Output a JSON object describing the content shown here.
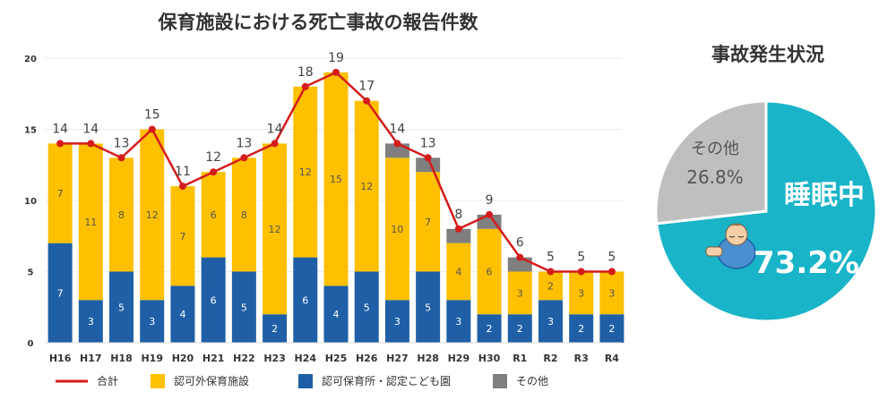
{
  "chart_data": [
    {
      "type": "bar",
      "stacked": true,
      "title": "保育施設における死亡事故の報告件数",
      "categories": [
        "H16",
        "H17",
        "H18",
        "H19",
        "H20",
        "H21",
        "H22",
        "H23",
        "H24",
        "H25",
        "H26",
        "H27",
        "H28",
        "H29",
        "H30",
        "R1",
        "R2",
        "R3",
        "R4"
      ],
      "ylim": [
        0,
        20
      ],
      "yticks": [
        0,
        5,
        10,
        15,
        20
      ],
      "series": [
        {
          "name": "認可保育所・認定こども園",
          "color": "#1f5fa6",
          "values": [
            7,
            3,
            5,
            3,
            4,
            6,
            5,
            2,
            6,
            4,
            5,
            3,
            5,
            3,
            2,
            2,
            3,
            2,
            2
          ]
        },
        {
          "name": "認可外保育施設",
          "color": "#ffc000",
          "values": [
            7,
            11,
            8,
            12,
            7,
            6,
            8,
            12,
            12,
            15,
            12,
            10,
            7,
            4,
            6,
            3,
            2,
            3,
            3
          ]
        },
        {
          "name": "その他",
          "color": "#7f7f7f",
          "values": [
            0,
            0,
            0,
            0,
            0,
            0,
            0,
            0,
            0,
            0,
            0,
            1,
            1,
            1,
            1,
            1,
            0,
            0,
            0
          ]
        }
      ],
      "line": {
        "name": "合計",
        "color": "#d41c1c",
        "values": [
          14,
          14,
          13,
          15,
          11,
          12,
          13,
          14,
          18,
          19,
          17,
          14,
          13,
          8,
          9,
          6,
          5,
          5,
          5
        ]
      },
      "legend": [
        "合計",
        "認可外保育施設",
        "認可保育所・認定こども園",
        "その他"
      ],
      "legend_position": "bottom"
    },
    {
      "type": "pie",
      "title": "事故発生状況",
      "slices": [
        {
          "label": "睡眠中",
          "value": 73.2,
          "display": "73.2%",
          "color": "#19b4c8"
        },
        {
          "label": "その他",
          "value": 26.8,
          "display": "26.8%",
          "color": "#bfbfbf"
        }
      ]
    }
  ]
}
